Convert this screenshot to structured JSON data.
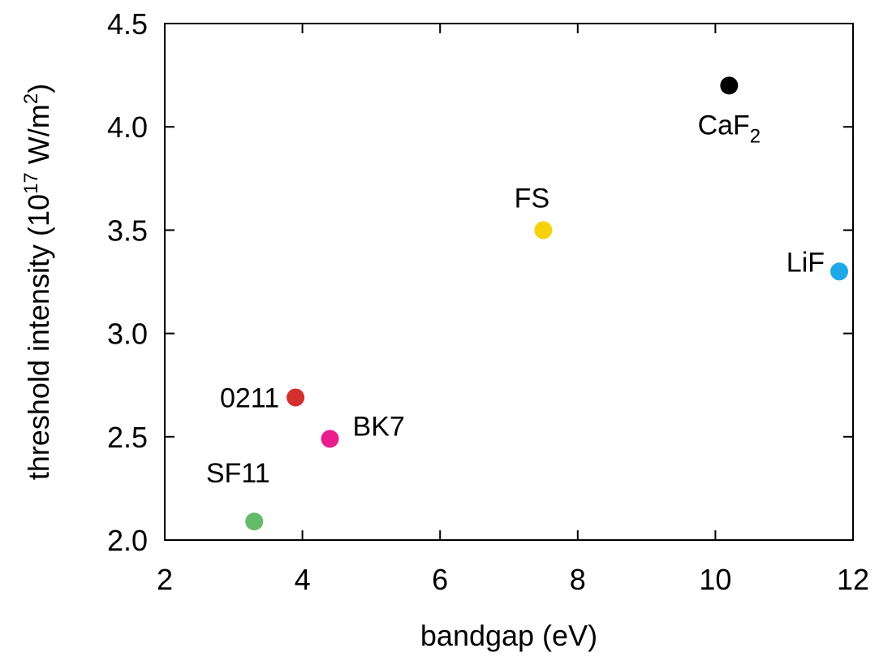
{
  "chart_data": {
    "type": "scatter",
    "title": "",
    "xlabel": "bandgap (eV)",
    "ylabel": {
      "prefix": "threshold intensity (10",
      "exp": "17",
      "mid": " W/m",
      "sup2": "2",
      "suffix": ")"
    },
    "xlim": [
      2,
      12
    ],
    "ylim": [
      2.0,
      4.5
    ],
    "xticks": [
      2,
      4,
      6,
      8,
      10,
      12
    ],
    "xtick_labels": [
      "2",
      "4",
      "6",
      "8",
      "10",
      "12"
    ],
    "yticks": [
      2.0,
      2.5,
      3.0,
      3.5,
      4.0,
      4.5
    ],
    "ytick_labels": [
      "2.0",
      "2.5",
      "3.0",
      "3.5",
      "4.0",
      "4.5"
    ],
    "grid": false,
    "points": [
      {
        "label": "SF11",
        "x": 3.3,
        "y": 2.09,
        "color": "#66bb6a",
        "sub": ""
      },
      {
        "label": "0211",
        "x": 3.9,
        "y": 2.69,
        "color": "#d32f2f",
        "sub": ""
      },
      {
        "label": "BK7",
        "x": 4.4,
        "y": 2.49,
        "color": "#e91e8c",
        "sub": ""
      },
      {
        "label": "FS",
        "x": 7.5,
        "y": 3.5,
        "color": "#f5d20a",
        "sub": ""
      },
      {
        "label": "CaF",
        "x": 10.2,
        "y": 4.2,
        "color": "#000000",
        "sub": "2"
      },
      {
        "label": "LiF",
        "x": 11.8,
        "y": 3.3,
        "color": "#1fa9e8",
        "sub": ""
      }
    ]
  }
}
